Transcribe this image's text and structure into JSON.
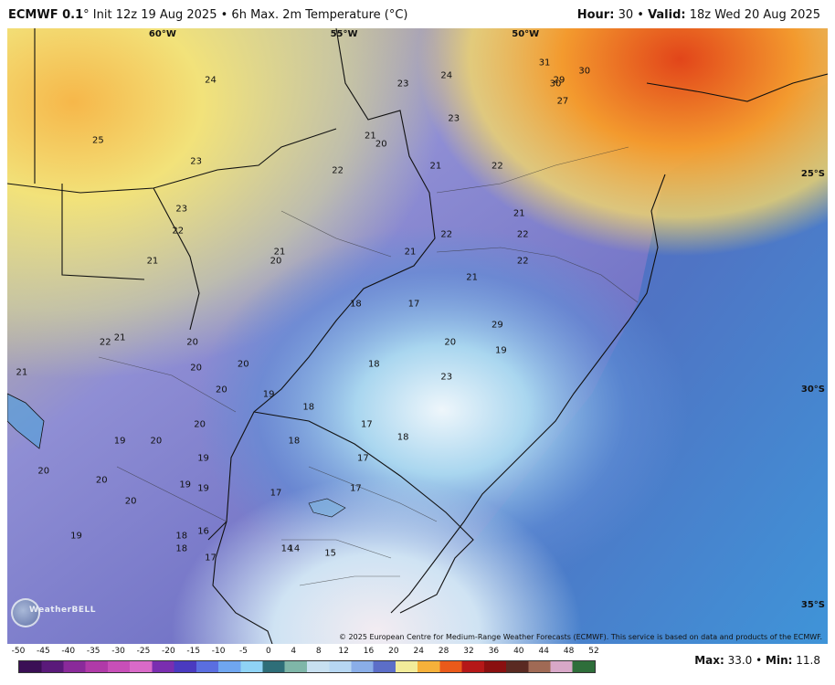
{
  "header": {
    "model": "ECMWF 0.1",
    "degree_mark": "°",
    "init": "Init 12z 19 Aug 2025",
    "bullet": "•",
    "product": "6h Max. 2m Temperature (°C)",
    "hour_label": "Hour:",
    "hour_value": "30",
    "valid_label": "Valid:",
    "valid_value": "18z Wed 20 Aug 2025"
  },
  "map": {
    "longitudes": [
      "60°W",
      "55°W",
      "50°W"
    ],
    "latitudes": [
      "25°S",
      "30°S",
      "35°S"
    ],
    "temperature_labels": [
      {
        "value": "31",
        "lon": -49.3,
        "lat": -22.4
      },
      {
        "value": "30",
        "lon": -48.2,
        "lat": -22.6
      },
      {
        "value": "30",
        "lon": -49.0,
        "lat": -22.9
      },
      {
        "value": "29",
        "lon": -48.9,
        "lat": -22.8
      },
      {
        "value": "27",
        "lon": -48.8,
        "lat": -23.3
      },
      {
        "value": "24",
        "lon": -58.5,
        "lat": -22.8
      },
      {
        "value": "24",
        "lon": -52.0,
        "lat": -22.7
      },
      {
        "value": "23",
        "lon": -53.2,
        "lat": -22.9
      },
      {
        "value": "23",
        "lon": -51.8,
        "lat": -23.7
      },
      {
        "value": "25",
        "lon": -61.6,
        "lat": -24.2
      },
      {
        "value": "21",
        "lon": -54.1,
        "lat": -24.1
      },
      {
        "value": "20",
        "lon": -53.8,
        "lat": -24.3
      },
      {
        "value": "22",
        "lon": -55.0,
        "lat": -24.9
      },
      {
        "value": "23",
        "lon": -58.9,
        "lat": -24.7
      },
      {
        "value": "21",
        "lon": -52.3,
        "lat": -24.8
      },
      {
        "value": "22",
        "lon": -50.6,
        "lat": -24.8
      },
      {
        "value": "23",
        "lon": -59.3,
        "lat": -25.8
      },
      {
        "value": "22",
        "lon": -59.4,
        "lat": -26.3
      },
      {
        "value": "21",
        "lon": -50.0,
        "lat": -25.9
      },
      {
        "value": "22",
        "lon": -52.0,
        "lat": -26.4
      },
      {
        "value": "22",
        "lon": -49.9,
        "lat": -26.4
      },
      {
        "value": "21",
        "lon": -60.1,
        "lat": -27.0
      },
      {
        "value": "21",
        "lon": -56.6,
        "lat": -26.8
      },
      {
        "value": "20",
        "lon": -56.7,
        "lat": -27.0
      },
      {
        "value": "21",
        "lon": -53.0,
        "lat": -26.8
      },
      {
        "value": "22",
        "lon": -49.9,
        "lat": -27.0
      },
      {
        "value": "21",
        "lon": -51.3,
        "lat": -27.4
      },
      {
        "value": "18",
        "lon": -54.5,
        "lat": -28.0
      },
      {
        "value": "17",
        "lon": -52.9,
        "lat": -28.0
      },
      {
        "value": "29",
        "lon": -50.6,
        "lat": -28.5
      },
      {
        "value": "22",
        "lon": -61.4,
        "lat": -28.9
      },
      {
        "value": "21",
        "lon": -61.0,
        "lat": -28.8
      },
      {
        "value": "20",
        "lon": -59.0,
        "lat": -28.9
      },
      {
        "value": "20",
        "lon": -51.9,
        "lat": -28.9
      },
      {
        "value": "19",
        "lon": -50.5,
        "lat": -29.1
      },
      {
        "value": "21",
        "lon": -63.7,
        "lat": -29.6
      },
      {
        "value": "20",
        "lon": -58.9,
        "lat": -29.5
      },
      {
        "value": "20",
        "lon": -57.6,
        "lat": -29.4
      },
      {
        "value": "18",
        "lon": -54.0,
        "lat": -29.4
      },
      {
        "value": "23",
        "lon": -52.0,
        "lat": -29.7
      },
      {
        "value": "20",
        "lon": -58.2,
        "lat": -30.0
      },
      {
        "value": "19",
        "lon": -56.9,
        "lat": -30.1
      },
      {
        "value": "18",
        "lon": -55.8,
        "lat": -30.4
      },
      {
        "value": "20",
        "lon": -58.8,
        "lat": -30.8
      },
      {
        "value": "17",
        "lon": -54.2,
        "lat": -30.8
      },
      {
        "value": "18",
        "lon": -53.2,
        "lat": -31.1
      },
      {
        "value": "19",
        "lon": -61.0,
        "lat": -31.2
      },
      {
        "value": "20",
        "lon": -60.0,
        "lat": -31.2
      },
      {
        "value": "18",
        "lon": -56.2,
        "lat": -31.2
      },
      {
        "value": "19",
        "lon": -58.7,
        "lat": -31.6
      },
      {
        "value": "17",
        "lon": -54.3,
        "lat": -31.6
      },
      {
        "value": "20",
        "lon": -63.1,
        "lat": -31.9
      },
      {
        "value": "20",
        "lon": -61.5,
        "lat": -32.1
      },
      {
        "value": "19",
        "lon": -59.2,
        "lat": -32.2
      },
      {
        "value": "19",
        "lon": -58.7,
        "lat": -32.3
      },
      {
        "value": "17",
        "lon": -56.7,
        "lat": -32.4
      },
      {
        "value": "17",
        "lon": -54.5,
        "lat": -32.3
      },
      {
        "value": "20",
        "lon": -60.7,
        "lat": -32.6
      },
      {
        "value": "19",
        "lon": -62.2,
        "lat": -33.4
      },
      {
        "value": "18",
        "lon": -59.3,
        "lat": -33.4
      },
      {
        "value": "16",
        "lon": -58.7,
        "lat": -33.3
      },
      {
        "value": "18",
        "lon": -59.3,
        "lat": -33.7
      },
      {
        "value": "17",
        "lon": -58.5,
        "lat": -33.9
      },
      {
        "value": "14",
        "lon": -56.4,
        "lat": -33.7
      },
      {
        "value": "14",
        "lon": -56.2,
        "lat": -33.7
      },
      {
        "value": "15",
        "lon": -55.2,
        "lat": -33.8
      }
    ]
  },
  "copyright": "© 2025 European Centre for Medium-Range Weather Forecasts (ECMWF). This service is based on data and products of the ECMWF.",
  "logo_text": "WeatherBELL",
  "colorbar": {
    "ticks": [
      "-50",
      "-45",
      "-40",
      "-35",
      "-30",
      "-25",
      "-20",
      "-15",
      "-10",
      "-5",
      "0",
      "4",
      "8",
      "12",
      "16",
      "20",
      "24",
      "28",
      "32",
      "36",
      "40",
      "44",
      "48",
      "52"
    ],
    "colors": [
      "#3a0f55",
      "#5a1a7a",
      "#8a2a9a",
      "#b03aa8",
      "#c84fb8",
      "#d96ac8",
      "#7a2eb0",
      "#4a3ac0",
      "#5a6ee0",
      "#6fa6f0",
      "#8fd3f5",
      "#2e6e78",
      "#7fb6a8",
      "#c8e0f0",
      "#b7d7f2",
      "#8aaee8",
      "#5c6ec8",
      "#f2ec9a",
      "#f6b13a",
      "#ea5a1a",
      "#b51818",
      "#8a1010",
      "#5a2a22",
      "#a06a55",
      "#d8a8c8",
      "#2e6e3a"
    ],
    "unit": "°C"
  },
  "stats": {
    "max_label": "Max:",
    "max_value": "33.0",
    "min_label": "Min:",
    "min_value": "11.8"
  }
}
